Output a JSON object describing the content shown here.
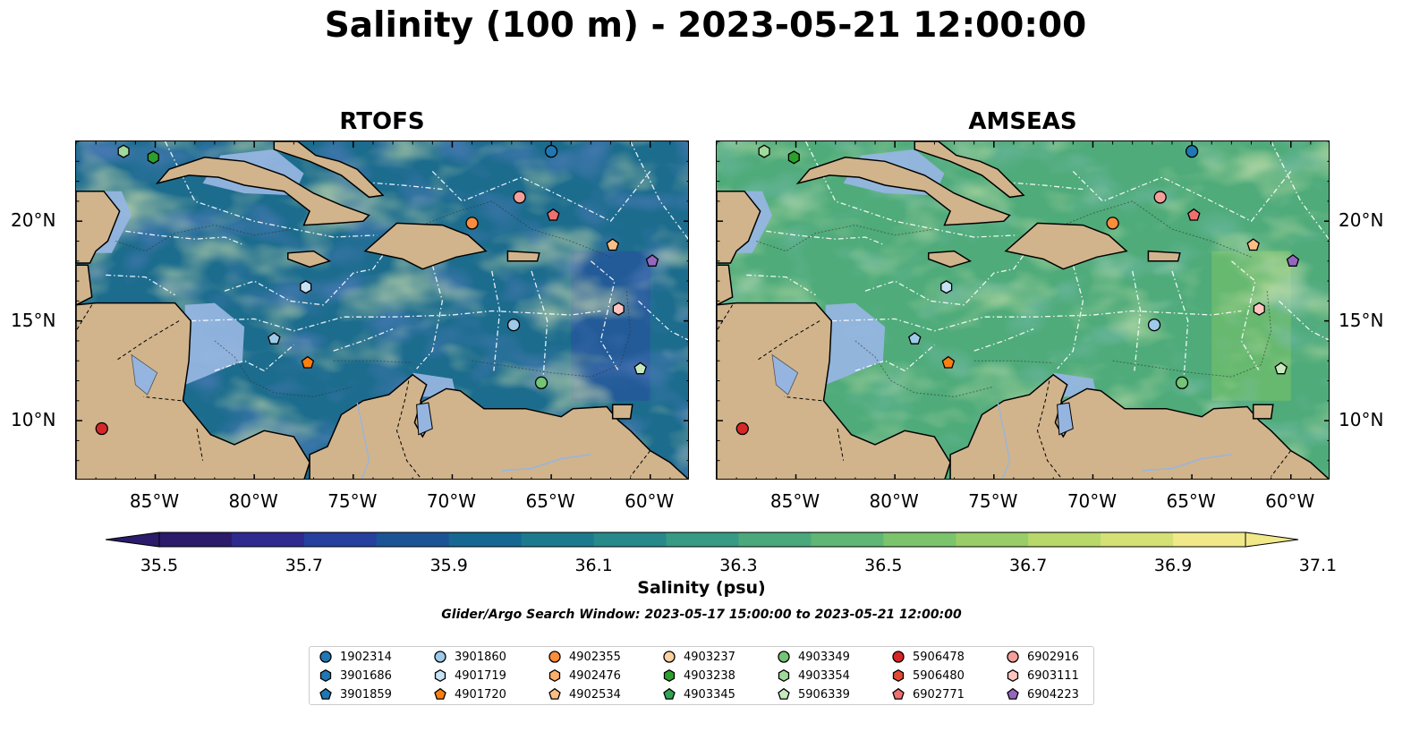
{
  "figure": {
    "title": "Salinity (100 m) - 2023-05-21 12:00:00",
    "search_window": "Glider/Argo Search Window: 2023-05-17 15:00:00 to 2023-05-21 12:00:00"
  },
  "panels": [
    {
      "title": "RTOFS",
      "field_base": "#1c6c8e",
      "open_ocean_east": "#2a4fa0",
      "pacific": "#2c1a6c"
    },
    {
      "title": "AMSEAS",
      "field_base": "#4fab7a",
      "open_ocean_east": "#7ec468",
      "pacific": "#95b5e0"
    }
  ],
  "map": {
    "lon_range": [
      -89,
      -58
    ],
    "lat_range": [
      7,
      24
    ],
    "lon_ticks": [
      "85°W",
      "80°W",
      "75°W",
      "70°W",
      "65°W",
      "60°W"
    ],
    "lat_ticks": [
      "20°N",
      "15°N",
      "10°N"
    ],
    "land_color": "#d1b48c",
    "water_color": "#95b5e0"
  },
  "colorbar": {
    "label": "Salinity (psu)",
    "min": 35.5,
    "max": 37.1,
    "step": 0.1,
    "tick_labels": [
      "35.5",
      "35.7",
      "35.9",
      "36.1",
      "36.3",
      "36.5",
      "36.7",
      "36.9",
      "37.1"
    ],
    "colors": [
      "#2b1b6a",
      "#2e2a90",
      "#25409e",
      "#1b5496",
      "#156891",
      "#1c7a8d",
      "#27898a",
      "#369a84",
      "#4aa97c",
      "#5fb675",
      "#7bc46c",
      "#99cd67",
      "#b8d86a",
      "#d5e075",
      "#f1e88a"
    ],
    "extend": "both"
  },
  "legend": {
    "entries": [
      {
        "id": "1902314",
        "color": "#1f77b4",
        "marker": "circle",
        "lon": -65,
        "lat": 23.5
      },
      {
        "id": "3901686",
        "color": "#1f77b4",
        "marker": "hexagon"
      },
      {
        "id": "3901859",
        "color": "#1f77b4",
        "marker": "pentagon"
      },
      {
        "id": "3901860",
        "color": "#9ecae9",
        "marker": "circle",
        "lon": -66.9,
        "lat": 14.8
      },
      {
        "id": "4901719",
        "color": "#c6e2f4",
        "marker": "hexagon",
        "lon": -77.4,
        "lat": 16.7
      },
      {
        "id": "4901720",
        "color": "#ff7f0e",
        "marker": "pentagon",
        "lon": -77.3,
        "lat": 12.9
      },
      {
        "id": "4902355",
        "color": "#fd8d3c",
        "marker": "circle",
        "lon": -69,
        "lat": 19.9
      },
      {
        "id": "4902476",
        "color": "#fdae6b",
        "marker": "hexagon"
      },
      {
        "id": "4902534",
        "color": "#fdbe85",
        "marker": "pentagon",
        "lon": -61.9,
        "lat": 18.8
      },
      {
        "id": "4903237",
        "color": "#fdd0a2",
        "marker": "circle"
      },
      {
        "id": "4903238",
        "color": "#2ca02c",
        "marker": "hexagon",
        "lon": -85.1,
        "lat": 23.2
      },
      {
        "id": "4903345",
        "color": "#31a354",
        "marker": "pentagon"
      },
      {
        "id": "4903349",
        "color": "#74c476",
        "marker": "circle",
        "lon": -65.5,
        "lat": 11.9
      },
      {
        "id": "4903354",
        "color": "#a1d99b",
        "marker": "hexagon",
        "lon": -86.6,
        "lat": 23.5
      },
      {
        "id": "5906339",
        "color": "#c7e9c0",
        "marker": "pentagon",
        "lon": -60.5,
        "lat": 12.6
      },
      {
        "id": "5906478",
        "color": "#d62728",
        "marker": "circle",
        "lon": -87.7,
        "lat": 9.6
      },
      {
        "id": "5906480",
        "color": "#e34a33",
        "marker": "hexagon"
      },
      {
        "id": "6902771",
        "color": "#f07070",
        "marker": "pentagon",
        "lon": -64.9,
        "lat": 20.3
      },
      {
        "id": "6902916",
        "color": "#f4a09a",
        "marker": "circle",
        "lon": -66.6,
        "lat": 21.2
      },
      {
        "id": "6903111",
        "color": "#fcc5c0",
        "marker": "hexagon",
        "lon": -61.6,
        "lat": 15.6
      },
      {
        "id": "6904223",
        "color": "#9467bd",
        "marker": "pentagon",
        "lon": -59.9,
        "lat": 18
      }
    ],
    "extra_markers": [
      {
        "color": "#9ecae9",
        "marker": "pentagon",
        "lon": -79,
        "lat": 14.1
      }
    ]
  }
}
